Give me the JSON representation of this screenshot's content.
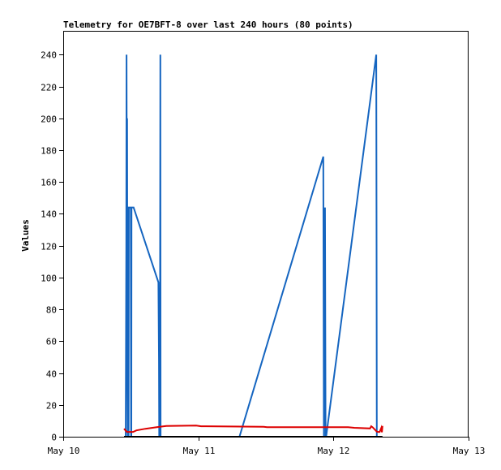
{
  "chart_data": {
    "type": "line",
    "title": "Telemetry for OE7BFT-8 over last 240 hours (80 points)",
    "xlabel": "",
    "ylabel": "Values",
    "x_tick_labels": [
      "May 10",
      "May 11",
      "May 12",
      "May 13"
    ],
    "x_ticks": [
      0,
      24,
      48,
      72
    ],
    "xlim": [
      0,
      72
    ],
    "x_unit": "hours since May 10 00:00",
    "y_ticks": [
      0,
      20,
      40,
      60,
      80,
      100,
      120,
      140,
      160,
      180,
      200,
      220,
      240
    ],
    "ylim": [
      0,
      255
    ],
    "grid": false,
    "legend": "none",
    "colors": {
      "series_blue": "#1565c0",
      "series_red": "#dd0000",
      "series_black": "#000000"
    },
    "series": [
      {
        "color": "#1565c0",
        "x": [
          11.1,
          11.2,
          11.25,
          11.3,
          11.35,
          11.4,
          11.45,
          11.5,
          11.55,
          11.6,
          11.65,
          11.9,
          12.0,
          12.05,
          12.1,
          12.12,
          12.5,
          16.9,
          17.0,
          17.05,
          17.1,
          17.15,
          17.2,
          17.25,
          17.3,
          17.35,
          17.5,
          18.3,
          18.5,
          18.55,
          18.6,
          18.65,
          18.7,
          18.8,
          31.3,
          46.2,
          46.3,
          46.35,
          46.4,
          46.45,
          46.5,
          46.6,
          46.7,
          55.6,
          55.65,
          55.7,
          55.8
        ],
        "y": [
          0,
          120,
          240,
          120,
          200,
          40,
          0,
          0,
          0,
          0,
          144,
          144,
          144,
          0,
          0,
          144,
          144,
          97,
          48,
          0,
          0,
          64,
          64,
          240,
          0,
          0,
          0,
          0,
          0,
          0,
          0,
          0,
          0,
          0,
          0,
          176,
          0,
          88,
          64,
          126,
          144,
          0,
          0,
          240,
          120,
          0,
          0
        ]
      },
      {
        "color": "#dd0000",
        "x": [
          10.8,
          11.3,
          12.4,
          13.0,
          14.6,
          16.6,
          18.3,
          23.6,
          24.5,
          35.6,
          36.2,
          42.0,
          50.6,
          51.7,
          54.5,
          54.7,
          55.0,
          55.7,
          55.9,
          56.2,
          56.5,
          56.6,
          56.7
        ],
        "y": [
          5,
          3,
          3,
          4,
          5,
          6,
          6.8,
          7,
          6.6,
          6.2,
          6.0,
          6.0,
          6.0,
          5.6,
          5.2,
          6.6,
          5.8,
          3.2,
          3.0,
          3.0,
          5.6,
          2.8,
          6.8
        ]
      },
      {
        "color": "#000000",
        "x": [
          10.8,
          56.7
        ],
        "y": [
          0,
          0
        ]
      }
    ]
  }
}
